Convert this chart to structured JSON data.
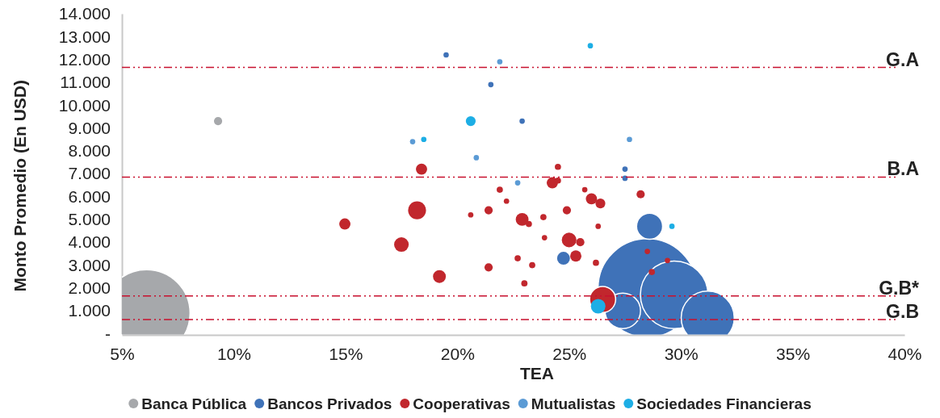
{
  "chart_data": {
    "type": "bubble",
    "xlabel": "TEA",
    "ylabel": "Monto Promedio (En USD)",
    "xlim": [
      5,
      40
    ],
    "xticks": [
      {
        "value": 5,
        "label": "5%"
      },
      {
        "value": 10,
        "label": "10%"
      },
      {
        "value": 15,
        "label": "15%"
      },
      {
        "value": 20,
        "label": "20%"
      },
      {
        "value": 25,
        "label": "25%"
      },
      {
        "value": 30,
        "label": "30%"
      },
      {
        "value": 35,
        "label": "35%"
      },
      {
        "value": 40,
        "label": "40%"
      }
    ],
    "ylim": [
      0,
      14000
    ],
    "yticks": [
      {
        "value": 0,
        "label": "-"
      },
      {
        "value": 1000,
        "label": "1.000"
      },
      {
        "value": 2000,
        "label": "2.000"
      },
      {
        "value": 3000,
        "label": "3.000"
      },
      {
        "value": 4000,
        "label": "4.000"
      },
      {
        "value": 5000,
        "label": "5.000"
      },
      {
        "value": 6000,
        "label": "6.000"
      },
      {
        "value": 7000,
        "label": "7.000"
      },
      {
        "value": 8000,
        "label": "8.000"
      },
      {
        "value": 9000,
        "label": "9.000"
      },
      {
        "value": 10000,
        "label": "10.000"
      },
      {
        "value": 11000,
        "label": "11.000"
      },
      {
        "value": 12000,
        "label": "12.000"
      },
      {
        "value": 13000,
        "label": "13.000"
      },
      {
        "value": 14000,
        "label": "14.000"
      }
    ],
    "grid": false,
    "legend": "bottom",
    "marker": "circle",
    "ref_lines": [
      {
        "axis": "y",
        "value": 11650,
        "label": "G.A",
        "color": "#c8102e",
        "line_style": "dashdot"
      },
      {
        "axis": "y",
        "value": 6850,
        "label": "B.A",
        "color": "#c8102e",
        "line_style": "dashdot"
      },
      {
        "axis": "y",
        "value": 1650,
        "label": "G.B*",
        "color": "#c8102e",
        "line_style": "dashdot"
      },
      {
        "axis": "y",
        "value": 620,
        "label": "G.B",
        "color": "#c8102e",
        "line_style": "dashdot"
      }
    ],
    "series": [
      {
        "name": "Banca Pública",
        "color": "#a6a8ab",
        "x": [
          6.1,
          9.3
        ],
        "values": [
          900,
          9300
        ],
        "sizes": [
          0.78,
          0.007
        ]
      },
      {
        "name": "Bancos Privados",
        "color": "#3f72b8",
        "x": [
          28.5,
          29.7,
          31.2,
          27.4,
          19.5,
          21.5,
          22.9,
          27.5,
          27.5,
          28.6,
          24.75
        ],
        "values": [
          2000,
          1700,
          700,
          1000,
          12200,
          10900,
          9300,
          6800,
          7200,
          4700,
          3300
        ],
        "sizes": [
          1,
          0.47,
          0.29,
          0.13,
          0.003,
          0.003,
          0.003,
          0.003,
          0.003,
          0.07,
          0.017
        ]
      },
      {
        "name": "Cooperativas",
        "color": "#c1272d",
        "x": [
          14.97,
          17.5,
          18.2,
          18.4,
          19.2,
          20.6,
          21.4,
          21.4,
          21.9,
          22.2,
          22.7,
          22.9,
          23.2,
          23.0,
          23.35,
          23.85,
          23.9,
          24.25,
          24.5,
          24.5,
          24.9,
          25.0,
          25.5,
          25.3,
          25.7,
          26.0,
          26.4,
          26.3,
          26.2,
          26.5,
          28.2,
          28.5,
          29.4,
          28.7
        ],
        "values": [
          4800,
          3900,
          5400,
          7200,
          2500,
          5200,
          5400,
          2900,
          6300,
          5800,
          3300,
          5000,
          4800,
          2200,
          3000,
          5100,
          4200,
          6600,
          6700,
          7300,
          5400,
          4100,
          4000,
          3400,
          6300,
          5900,
          5700,
          4700,
          3100,
          1500,
          6100,
          3600,
          3200,
          2700
        ],
        "sizes": [
          0.013,
          0.022,
          0.033,
          0.013,
          0.017,
          0.003,
          0.007,
          0.007,
          0.004,
          0.003,
          0.004,
          0.017,
          0.004,
          0.004,
          0.004,
          0.004,
          0.003,
          0.013,
          0.004,
          0.004,
          0.007,
          0.022,
          0.007,
          0.013,
          0.003,
          0.013,
          0.01,
          0.003,
          0.004,
          0.07,
          0.007,
          0.003,
          0.003,
          0.004
        ]
      },
      {
        "name": "Mutualistas",
        "color": "#5b9bd5",
        "x": [
          21.9,
          18.0,
          20.85,
          22.7,
          27.7
        ],
        "values": [
          11900,
          8400,
          7700,
          6600,
          8500
        ],
        "sizes": [
          0.003,
          0.003,
          0.003,
          0.003,
          0.003
        ]
      },
      {
        "name": "Sociedades Financieras",
        "color": "#1daee5",
        "x": [
          25.95,
          18.5,
          20.6,
          29.6,
          26.3
        ],
        "values": [
          12600,
          8500,
          9300,
          4700,
          1200
        ],
        "sizes": [
          0.003,
          0.003,
          0.01,
          0.003,
          0.022
        ]
      }
    ]
  }
}
